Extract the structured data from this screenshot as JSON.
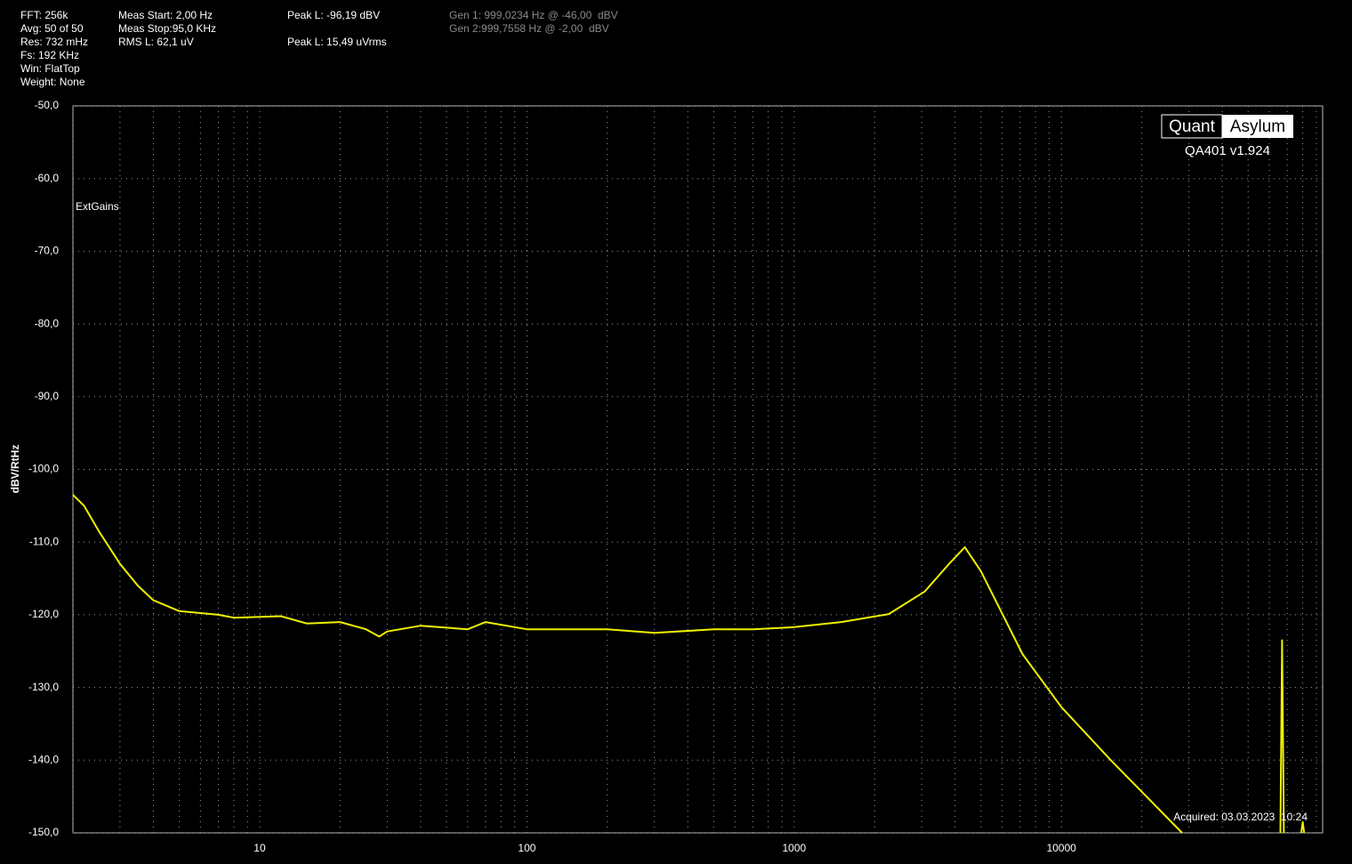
{
  "chart_data": {
    "type": "line",
    "y_label": "dBV/RtHz",
    "annotations": [
      "FFT: 256k",
      "Avg: 50 of 50",
      "Res: 732 mHz",
      "Fs: 192 KHz",
      "Win: FlatTop",
      "Weight: None",
      "Meas Start: 2,00 Hz",
      "Meas Stop:95,0 KHz",
      "RMS L: 62,1 uV",
      "Peak L: -96,19 dBV",
      "Peak L: 15,49 uVrms",
      "Gen 1: 999,0234 Hz @ -46,00  dBV",
      "Gen 2:999,7558 Hz @ -2,00  dBV",
      "ExtGains",
      "Acquired: 03.03.2023  10:24",
      "Quant",
      "Asylum",
      "QA401 v1.924"
    ],
    "x_scale": "log",
    "xlim": [
      2,
      95000
    ],
    "xticks": [
      10,
      100,
      1000,
      10000
    ],
    "xgrid_minor": [
      2,
      3,
      4,
      5,
      6,
      7,
      8,
      9,
      20,
      30,
      40,
      50,
      60,
      70,
      80,
      90,
      200,
      300,
      400,
      500,
      600,
      700,
      800,
      900,
      2000,
      3000,
      4000,
      5000,
      6000,
      7000,
      8000,
      9000,
      20000,
      30000,
      40000,
      50000,
      60000,
      70000,
      80000,
      90000
    ],
    "ylim": [
      -150,
      -50
    ],
    "yticks": [
      {
        "value": -150,
        "label": "-150,0"
      },
      {
        "value": -140,
        "label": "-140,0"
      },
      {
        "value": -130,
        "label": "-130,0"
      },
      {
        "value": -120,
        "label": "-120,0"
      },
      {
        "value": -110,
        "label": "-110,0"
      },
      {
        "value": -100,
        "label": "-100,0"
      },
      {
        "value": -90,
        "label": "-90,0"
      },
      {
        "value": -80,
        "label": "-80,0"
      },
      {
        "value": -70,
        "label": "-70,0"
      },
      {
        "value": -60,
        "label": "-60,0"
      },
      {
        "value": -50,
        "label": "-50,0"
      }
    ],
    "grid": true,
    "series": [
      {
        "color": "#f0f000",
        "x": [
          2,
          2.2,
          2.5,
          3,
          3.5,
          4,
          5,
          7,
          8,
          12,
          15,
          20,
          25,
          28,
          30,
          40,
          60,
          70,
          100,
          150,
          200,
          300,
          500,
          700,
          1000,
          1500,
          2260,
          3080,
          3800,
          4350,
          5000,
          7150,
          10000,
          15300,
          28300,
          30000,
          66000,
          67000,
          68000,
          75000,
          79000,
          80000,
          81000
        ],
        "values": [
          -103.5,
          -105,
          -108.5,
          -113,
          -116,
          -118,
          -119.5,
          -120,
          -120.4,
          -120.2,
          -121.2,
          -121,
          -122,
          -123,
          -122.3,
          -121.5,
          -122,
          -121,
          -122,
          -122,
          -122,
          -122.5,
          -122,
          -122,
          -121.7,
          -121,
          -119.9,
          -116.8,
          -113,
          -110.7,
          -114,
          -125.4,
          -132.7,
          -140,
          -150,
          null,
          -150,
          -123.5,
          -150,
          null,
          -150,
          -148.5,
          -150
        ]
      }
    ]
  }
}
